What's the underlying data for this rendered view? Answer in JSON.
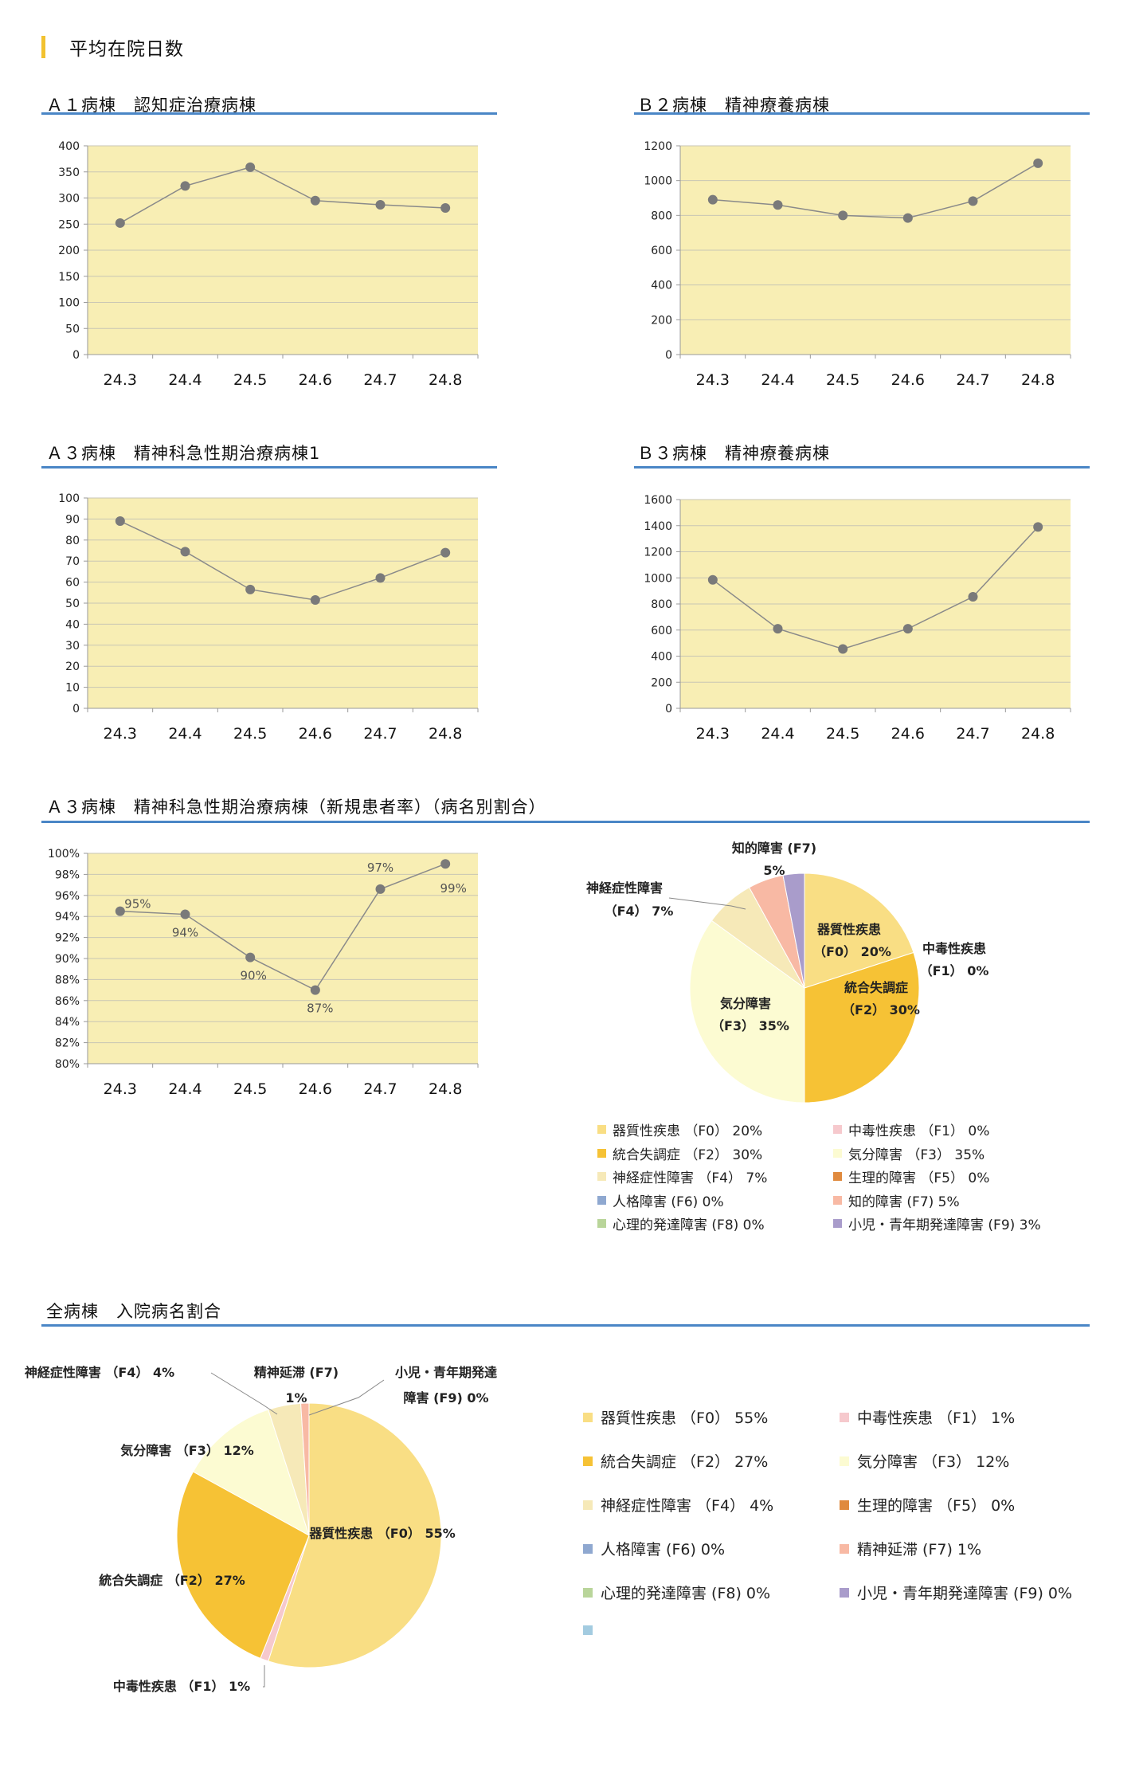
{
  "page": {
    "title": "平均在院日数"
  },
  "colors": {
    "plot_bg": "#f8eeb4",
    "grid": "#c9c6b4",
    "line": "#8a8a8a",
    "marker": "#7a7a7a",
    "section_line": "#4a86c6",
    "title_bar": "#f2c230",
    "pie_palette": {
      "F0": "#f9de84",
      "F1": "#f6c9cd",
      "F2": "#f6c235",
      "F3": "#fcfbd2",
      "F4": "#f6e9b8",
      "F5": "#e08a3e",
      "F6": "#8fa8d0",
      "F7": "#f8b9a4",
      "F8": "#b9d59a",
      "F9": "#a99ccb",
      "blank": "#a3cbe0"
    }
  },
  "chart_data": [
    {
      "type": "line",
      "title": "Ａ１病棟　認知症治療病棟",
      "categories": [
        "24.3",
        "24.4",
        "24.5",
        "24.6",
        "24.7",
        "24.8"
      ],
      "values": [
        252,
        323,
        359,
        295,
        287,
        281
      ],
      "ylim": [
        0,
        400
      ],
      "yticks": [
        "0",
        "50",
        "100",
        "150",
        "200",
        "250",
        "300",
        "350",
        "400"
      ],
      "grid": true
    },
    {
      "type": "line",
      "title": "Ｂ２病棟　精神療養病棟",
      "categories": [
        "24.3",
        "24.4",
        "24.5",
        "24.6",
        "24.7",
        "24.8"
      ],
      "values": [
        890,
        860,
        800,
        785,
        882,
        1100
      ],
      "ylim": [
        0,
        1200
      ],
      "yticks": [
        "0",
        "200",
        "400",
        "600",
        "800",
        "1000",
        "1200"
      ],
      "grid": true
    },
    {
      "type": "line",
      "title": "Ａ３病棟　精神科急性期治療病棟1",
      "categories": [
        "24.3",
        "24.4",
        "24.5",
        "24.6",
        "24.7",
        "24.8"
      ],
      "values": [
        89,
        74.5,
        56.5,
        51.5,
        62,
        74
      ],
      "ylim": [
        0,
        100
      ],
      "yticks": [
        "0",
        "10",
        "20",
        "30",
        "40",
        "50",
        "60",
        "70",
        "80",
        "90",
        "100"
      ],
      "grid": true
    },
    {
      "type": "line",
      "title": "Ｂ３病棟　精神療養病棟",
      "categories": [
        "24.3",
        "24.4",
        "24.5",
        "24.6",
        "24.7",
        "24.8"
      ],
      "values": [
        985,
        610,
        455,
        610,
        855,
        1390
      ],
      "ylim": [
        0,
        1600
      ],
      "yticks": [
        "0",
        "200",
        "400",
        "600",
        "800",
        "1000",
        "1200",
        "1400",
        "1600"
      ],
      "grid": true
    },
    {
      "type": "line",
      "title": "Ａ３病棟　精神科急性期治療病棟（新規患者率）（病名別割合）",
      "categories": [
        "24.3",
        "24.4",
        "24.5",
        "24.6",
        "24.7",
        "24.8"
      ],
      "values": [
        94.5,
        94.2,
        90.1,
        87.0,
        96.6,
        99.0
      ],
      "data_labels": [
        "95%",
        "94%",
        "90%",
        "87%",
        "97%",
        "99%"
      ],
      "ylim": [
        80,
        100
      ],
      "yticks": [
        "80%",
        "82%",
        "84%",
        "86%",
        "88%",
        "90%",
        "92%",
        "94%",
        "96%",
        "98%",
        "100%"
      ],
      "grid": true
    },
    {
      "type": "pie",
      "slices": [
        {
          "key": "F0",
          "value": 20,
          "label1": "器質性疾患",
          "label2": "（F0） 20%"
        },
        {
          "key": "F1",
          "value": 0,
          "label1": "中毒性疾患",
          "label2": "（F1） 0%"
        },
        {
          "key": "F2",
          "value": 30,
          "label1": "統合失調症",
          "label2": "（F2） 30%"
        },
        {
          "key": "F3",
          "value": 35,
          "label1": "気分障害",
          "label2": "（F3） 35%"
        },
        {
          "key": "F4",
          "value": 7,
          "label1": "神経症性障害",
          "label2": "（F4） 7%"
        },
        {
          "key": "F5",
          "value": 0,
          "label1": "",
          "label2": ""
        },
        {
          "key": "F6",
          "value": 0,
          "label1": "",
          "label2": ""
        },
        {
          "key": "F7",
          "value": 5,
          "label1": "知的障害 (F7)",
          "label2": "5%"
        },
        {
          "key": "F8",
          "value": 0,
          "label1": "",
          "label2": ""
        },
        {
          "key": "F9",
          "value": 3,
          "label1": "",
          "label2": ""
        }
      ],
      "legend": [
        {
          "key": "F0",
          "text": "器質性疾患 （F0） 20%"
        },
        {
          "key": "F1",
          "text": "中毒性疾患 （F1） 0%"
        },
        {
          "key": "F2",
          "text": "統合失調症 （F2） 30%"
        },
        {
          "key": "F3",
          "text": "気分障害 （F3） 35%"
        },
        {
          "key": "F4",
          "text": "神経症性障害 （F4） 7%"
        },
        {
          "key": "F5",
          "text": "生理的障害 （F5） 0%"
        },
        {
          "key": "F6",
          "text": "人格障害 (F6) 0%"
        },
        {
          "key": "F7",
          "text": "知的障害 (F7) 5%"
        },
        {
          "key": "F8",
          "text": "心理的発達障害 (F8) 0%"
        },
        {
          "key": "F9",
          "text": "小児・青年期発達障害 (F9) 3%"
        }
      ]
    },
    {
      "type": "pie",
      "title": "全病棟　入院病名割合",
      "slices": [
        {
          "key": "F0",
          "value": 55,
          "label1": "器質性疾患 （F0） 55%"
        },
        {
          "key": "F1",
          "value": 1,
          "label1": "中毒性疾患 （F1） 1%"
        },
        {
          "key": "F2",
          "value": 27,
          "label1": "統合失調症 （F2） 27%"
        },
        {
          "key": "F3",
          "value": 12,
          "label1": "気分障害 （F3） 12%"
        },
        {
          "key": "F4",
          "value": 4,
          "label1": "神経症性障害 （F4） 4%"
        },
        {
          "key": "F5",
          "value": 0,
          "label1": ""
        },
        {
          "key": "F6",
          "value": 0,
          "label1": ""
        },
        {
          "key": "F7",
          "value": 1,
          "label1": "精神延滞 (F7)",
          "label2": "1%"
        },
        {
          "key": "F8",
          "value": 0,
          "label1": ""
        },
        {
          "key": "F9",
          "value": 0,
          "label1": "小児・青年期発達",
          "label2": "障害 (F9) 0%"
        }
      ],
      "legend": [
        {
          "key": "F0",
          "text": "器質性疾患 （F0） 55%"
        },
        {
          "key": "F1",
          "text": "中毒性疾患 （F1） 1%"
        },
        {
          "key": "F2",
          "text": "統合失調症 （F2） 27%"
        },
        {
          "key": "F3",
          "text": "気分障害 （F3） 12%"
        },
        {
          "key": "F4",
          "text": "神経症性障害 （F4） 4%"
        },
        {
          "key": "F5",
          "text": "生理的障害 （F5） 0%"
        },
        {
          "key": "F6",
          "text": "人格障害 (F6) 0%"
        },
        {
          "key": "F7",
          "text": "精神延滞 (F7) 1%"
        },
        {
          "key": "F8",
          "text": "心理的発達障害 (F8) 0%"
        },
        {
          "key": "F9",
          "text": "小児・青年期発達障害 (F9) 0%"
        },
        {
          "key": "blank",
          "text": ""
        }
      ]
    }
  ]
}
